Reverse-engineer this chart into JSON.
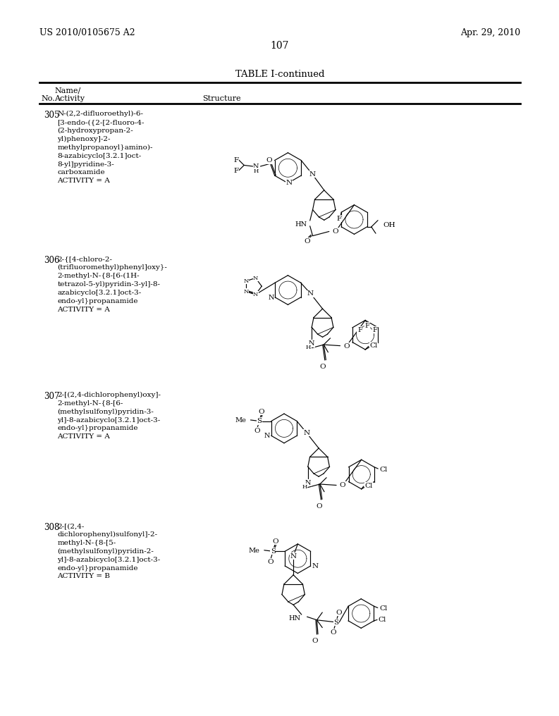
{
  "page_number": "107",
  "left_header": "US 2010/0105675 A2",
  "right_header": "Apr. 29, 2010",
  "table_title": "TABLE I-continued",
  "col_no": "No.",
  "col_name1": "Name/",
  "col_name2": "Activity",
  "col_struct": "Structure",
  "entries": [
    {
      "no": "305",
      "name": "N-(2,2-difluoroethyl)-6-\n[3-endo-({2-[2-fluoro-4-\n(2-hydroxypropan-2-\nyl)phenoxy]-2-\nmethylpropanoyl}amino)-\n8-azabicyclo[3.2.1]oct-\n8-yl]pyridine-3-\ncarboxamide\nACTIVITY = A"
    },
    {
      "no": "306",
      "name": "2-{[4-chloro-2-\n(trifluoromethyl)phenyl]oxy}-\n2-methyl-N-{8-[6-(1H-\ntetrazol-5-yl)pyridin-3-yl]-8-\nazabicyclo[3.2.1]oct-3-\nendo-yl}propanamide\nACTIVITY = A"
    },
    {
      "no": "307",
      "name": "2-[(2,4-dichlorophenyl)oxy]-\n2-methyl-N-{8-[6-\n(methylsulfonyl)pyridin-3-\nyl]-8-azabicyclo[3.2.1]oct-3-\nendo-yl}propanamide\nACTIVITY = A"
    },
    {
      "no": "308",
      "name": "2-[(2,4-\ndichlorophenyl)sulfonyl]-2-\nmethyl-N-{8-[5-\n(methylsulfonyl)pyridin-2-\nyl]-8-azabicyclo[3.2.1]oct-3-\nendo-yl}propanamide\nACTIVITY = B"
    }
  ]
}
